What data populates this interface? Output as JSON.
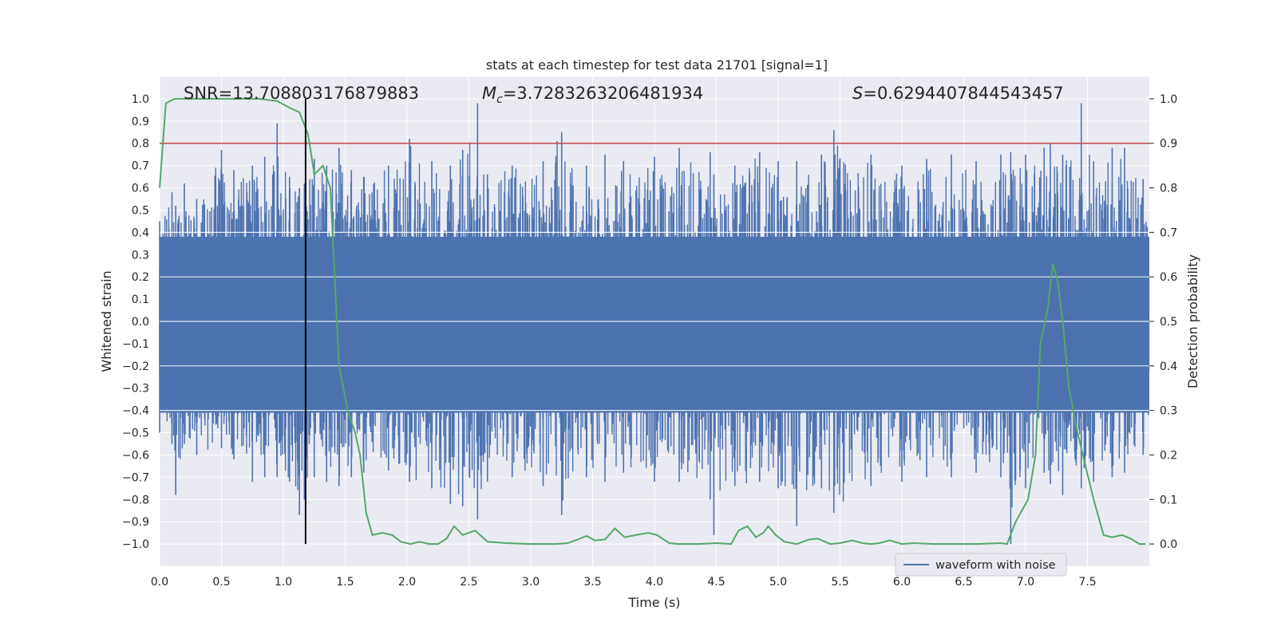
{
  "chart_data": {
    "type": "line",
    "title": "stats at each timestep for test data 21701 [signal=1]",
    "xlabel": "Time (s)",
    "ylabel_left": "Whitened strain",
    "ylabel_right": "Detection probability",
    "xlim": [
      0.0,
      8.0
    ],
    "ylim_left": [
      -1.1,
      1.1
    ],
    "ylim_right": [
      -0.05,
      1.05
    ],
    "xticks": [
      0.0,
      0.5,
      1.0,
      1.5,
      2.0,
      2.5,
      3.0,
      3.5,
      4.0,
      4.5,
      5.0,
      5.5,
      6.0,
      6.5,
      7.0,
      7.5
    ],
    "xtick_labels": [
      "0.0",
      "0.5",
      "1.0",
      "1.5",
      "2.0",
      "2.5",
      "3.0",
      "3.5",
      "4.0",
      "4.5",
      "5.0",
      "5.5",
      "6.0",
      "6.5",
      "7.0",
      "7.5"
    ],
    "yticks_left": [
      1.0,
      0.9,
      0.8,
      0.7,
      0.6,
      0.5,
      0.4,
      0.3,
      0.2,
      0.1,
      0.0,
      -0.1,
      -0.2,
      -0.3,
      -0.4,
      -0.5,
      -0.6,
      -0.7,
      -0.8,
      -0.9,
      -1.0
    ],
    "ytick_labels_left": [
      "1.0",
      "0.9",
      "0.8",
      "0.7",
      "0.6",
      "0.5",
      "0.4",
      "0.3",
      "0.2",
      "0.1",
      "0.0",
      "−0.1",
      "−0.2",
      "−0.3",
      "−0.4",
      "−0.5",
      "−0.6",
      "−0.7",
      "−0.8",
      "−0.9",
      "−1.0"
    ],
    "yticks_right": [
      1.0,
      0.9,
      0.8,
      0.7,
      0.6,
      0.5,
      0.4,
      0.3,
      0.2,
      0.1,
      0.0
    ],
    "ytick_labels_right": [
      "1.0",
      "0.9",
      "0.8",
      "0.7",
      "0.6",
      "0.5",
      "0.4",
      "0.3",
      "0.2",
      "0.1",
      "0.0"
    ],
    "annotations": {
      "snr": "SNR=13.708803176879883",
      "mc_symbol": "M",
      "mc_sub": "c",
      "mc_value": "=3.7283263206481934",
      "s_symbol": "S",
      "s_value": "=0.6294407844543457"
    },
    "threshold": {
      "value": 0.9,
      "axis": "right",
      "color": "#c44e52"
    },
    "vline": {
      "x": 1.18,
      "ymin": -1.0,
      "ymax": 1.0,
      "color": "#000000"
    },
    "legend": {
      "label": "waveform with noise",
      "placement": "lower-right"
    },
    "series": [
      {
        "name": "waveform with noise",
        "axis": "left",
        "color": "#4c72b0",
        "envelope_note": "dense noise trace; sampled extremes",
        "x": [
          0.0,
          0.1,
          0.13,
          0.2,
          0.3,
          0.5,
          0.6,
          0.75,
          0.85,
          0.95,
          1.05,
          1.13,
          1.17,
          1.25,
          1.35,
          1.45,
          1.55,
          1.65,
          1.85,
          2.02,
          2.2,
          2.35,
          2.45,
          2.57,
          2.65,
          2.85,
          3.1,
          3.25,
          3.45,
          3.6,
          3.75,
          4.0,
          4.2,
          4.45,
          4.48,
          4.65,
          4.85,
          5.0,
          5.15,
          5.35,
          5.45,
          5.75,
          6.0,
          6.2,
          6.4,
          6.6,
          6.8,
          6.88,
          7.0,
          7.15,
          7.2,
          7.3,
          7.45,
          7.55,
          7.7,
          7.8,
          7.95
        ],
        "max": [
          0.45,
          0.58,
          0.52,
          0.62,
          0.55,
          0.77,
          0.68,
          0.7,
          0.74,
          0.89,
          0.65,
          0.6,
          0.62,
          0.73,
          0.7,
          0.78,
          0.68,
          0.65,
          0.7,
          0.82,
          0.72,
          0.7,
          0.77,
          0.98,
          0.66,
          0.7,
          0.72,
          0.85,
          0.7,
          0.75,
          0.72,
          0.74,
          0.78,
          0.76,
          0.66,
          0.7,
          0.76,
          0.72,
          0.72,
          0.75,
          0.86,
          0.75,
          0.7,
          0.73,
          0.75,
          0.72,
          0.75,
          0.76,
          0.75,
          0.78,
          0.8,
          0.75,
          0.98,
          0.72,
          0.78,
          0.78,
          0.64
        ],
        "min": [
          -0.5,
          -0.55,
          -0.78,
          -0.55,
          -0.6,
          -0.57,
          -0.62,
          -0.72,
          -0.7,
          -0.7,
          -0.72,
          -0.87,
          -0.8,
          -0.7,
          -0.72,
          -0.74,
          -0.7,
          -0.68,
          -0.67,
          -0.72,
          -0.75,
          -0.82,
          -0.83,
          -0.89,
          -0.72,
          -0.7,
          -0.74,
          -0.87,
          -0.7,
          -0.72,
          -0.68,
          -0.72,
          -0.72,
          -0.8,
          -0.96,
          -0.74,
          -0.72,
          -0.75,
          -0.92,
          -0.75,
          -0.86,
          -0.74,
          -0.72,
          -0.7,
          -0.7,
          -0.68,
          -0.7,
          -1.0,
          -0.75,
          -0.68,
          -0.73,
          -0.78,
          -0.75,
          -0.72,
          -0.7,
          -0.68,
          -0.6
        ]
      },
      {
        "name": "detection probability",
        "axis": "right",
        "color": "#55a868",
        "x": [
          0.0,
          0.05,
          0.12,
          0.2,
          0.5,
          0.8,
          0.95,
          1.05,
          1.13,
          1.2,
          1.25,
          1.32,
          1.38,
          1.45,
          1.52,
          1.58,
          1.62,
          1.67,
          1.72,
          1.8,
          1.88,
          1.95,
          2.03,
          2.1,
          2.18,
          2.25,
          2.32,
          2.38,
          2.45,
          2.55,
          2.65,
          2.8,
          3.0,
          3.2,
          3.3,
          3.38,
          3.45,
          3.52,
          3.6,
          3.68,
          3.76,
          3.85,
          3.95,
          4.02,
          4.12,
          4.2,
          4.35,
          4.5,
          4.62,
          4.68,
          4.75,
          4.82,
          4.88,
          4.92,
          4.98,
          5.05,
          5.15,
          5.25,
          5.32,
          5.42,
          5.5,
          5.6,
          5.68,
          5.75,
          5.82,
          5.9,
          6.0,
          6.1,
          6.25,
          6.4,
          6.6,
          6.8,
          6.85,
          6.92,
          7.02,
          7.08,
          7.12,
          7.18,
          7.22,
          7.26,
          7.3,
          7.35,
          7.42,
          7.48,
          7.55,
          7.63,
          7.7,
          7.78,
          7.85,
          7.92,
          7.97
        ],
        "y": [
          0.8,
          0.99,
          1.0,
          1.0,
          1.0,
          1.0,
          0.995,
          0.98,
          0.97,
          0.92,
          0.83,
          0.85,
          0.8,
          0.4,
          0.3,
          0.25,
          0.2,
          0.07,
          0.02,
          0.025,
          0.02,
          0.005,
          0.0,
          0.005,
          0.0,
          0.0,
          0.012,
          0.04,
          0.02,
          0.03,
          0.005,
          0.002,
          0.0,
          0.0,
          0.002,
          0.01,
          0.018,
          0.008,
          0.01,
          0.035,
          0.015,
          0.02,
          0.025,
          0.02,
          0.002,
          0.0,
          0.0,
          0.002,
          0.0,
          0.03,
          0.04,
          0.015,
          0.025,
          0.04,
          0.02,
          0.005,
          0.0,
          0.01,
          0.012,
          0.0,
          0.002,
          0.008,
          0.002,
          0.0,
          0.002,
          0.008,
          0.0,
          0.002,
          0.0,
          0.0,
          0.0,
          0.002,
          0.0,
          0.05,
          0.1,
          0.2,
          0.45,
          0.53,
          0.63,
          0.59,
          0.5,
          0.35,
          0.25,
          0.18,
          0.1,
          0.02,
          0.015,
          0.02,
          0.012,
          0.0,
          0.0
        ]
      }
    ]
  }
}
